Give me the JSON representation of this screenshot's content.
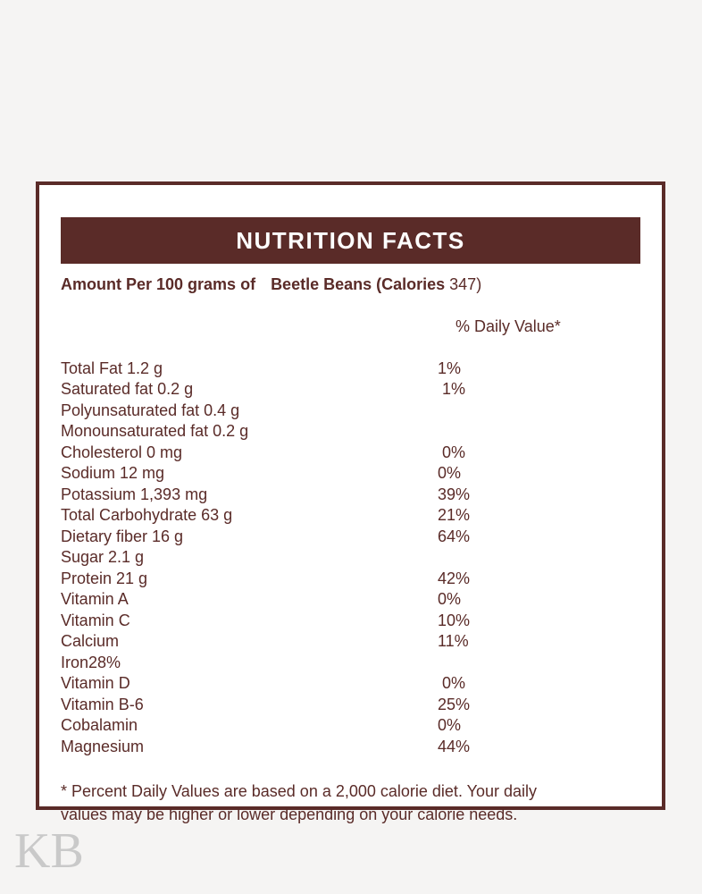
{
  "page": {
    "background_color": "#f5f4f3",
    "watermark": "KB"
  },
  "colors": {
    "maroon": "#5a2b28",
    "card_background": "#ffffff",
    "page_background": "#f5f4f3",
    "header_text": "#ffffff",
    "watermark_gray": "#c9c9c9"
  },
  "header": {
    "title": "NUTRITION FACTS"
  },
  "subheader": {
    "amount_label": "Amount Per 100 grams of",
    "product_label": "Beetle Beans (Calories",
    "calories_value": "347)",
    "daily_value_label": "% Daily Value*"
  },
  "nutrients": [
    {
      "label": "Total Fat 1.2 g",
      "value": "1%"
    },
    {
      "label": "Saturated fat 0.2 g",
      "value": " 1%"
    },
    {
      "label": "Polyunsaturated fat 0.4 g",
      "value": ""
    },
    {
      "label": "Monounsaturated fat 0.2 g",
      "value": ""
    },
    {
      "label": "Cholesterol 0 mg",
      "value": " 0%"
    },
    {
      "label": "Sodium 12 mg",
      "value": "0%"
    },
    {
      "label": "Potassium 1,393 mg",
      "value": "39%"
    },
    {
      "label": "Total Carbohydrate 63 g",
      "value": "21%"
    },
    {
      "label": "Dietary fiber 16 g",
      "value": "64%"
    },
    {
      "label": "Sugar 2.1 g",
      "value": ""
    },
    {
      "label": "Protein 21 g",
      "value": "42%"
    },
    {
      "label": "Vitamin A",
      "value": "0%"
    },
    {
      "label": "Vitamin C",
      "value": "10%"
    },
    {
      "label": "Calcium",
      "value": "11%"
    },
    {
      "label": "Iron28%",
      "value": ""
    },
    {
      "label": "Vitamin D",
      "value": " 0%"
    },
    {
      "label": "Vitamin B-6",
      "value": "25%"
    },
    {
      "label": "Cobalamin",
      "value": "0%"
    },
    {
      "label": "Magnesium",
      "value": "44%"
    }
  ],
  "footnote": {
    "line1": "* Percent Daily Values are based on a 2,000 calorie diet. Your daily",
    "line2": "values may be higher or lower depending on your calorie needs."
  }
}
